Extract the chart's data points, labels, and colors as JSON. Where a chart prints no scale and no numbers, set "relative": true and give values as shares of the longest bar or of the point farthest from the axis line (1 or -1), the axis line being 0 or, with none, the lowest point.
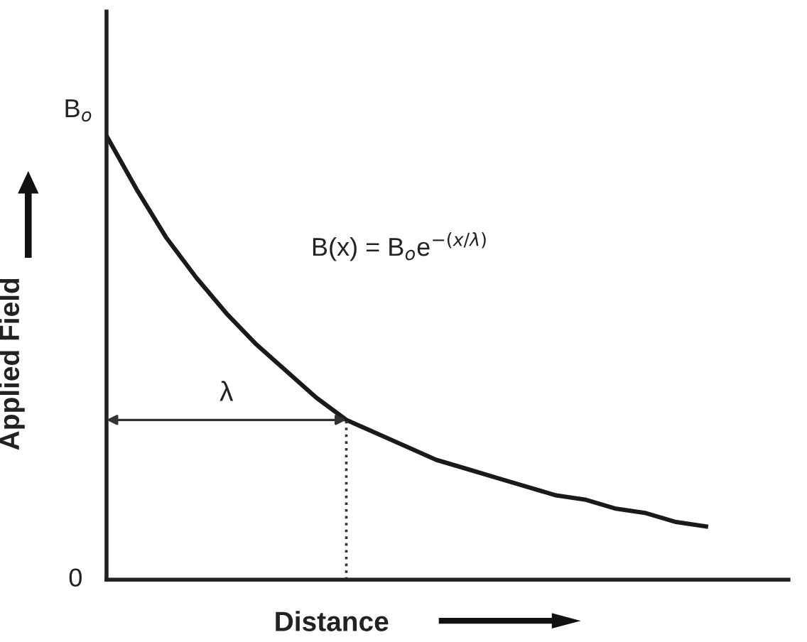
{
  "chart_data": {
    "type": "line",
    "xlabel": "Distance",
    "ylabel": "Applied Field",
    "categories": [
      null,
      null,
      null,
      null,
      null,
      null,
      null,
      null,
      null,
      null,
      null,
      null,
      null,
      null,
      null,
      null,
      null,
      null,
      null,
      null,
      null
    ],
    "series": [
      {
        "color": "#1a1a1a",
        "values": [
          1.0,
          0.88,
          0.77,
          0.68,
          0.6,
          0.53,
          0.47,
          0.41,
          0.36,
          0.33,
          0.3,
          0.27,
          0.25,
          0.23,
          0.21,
          0.19,
          0.18,
          0.16,
          0.15,
          0.13,
          0.12
        ]
      }
    ],
    "relative": true,
    "annotations": [
      "0",
      "B$_{o}$",
      "B(x) = B$_{o}$e$^{−(x/λ)}$",
      "λ"
    ],
    "marker": "none",
    "line_style": "solid"
  }
}
